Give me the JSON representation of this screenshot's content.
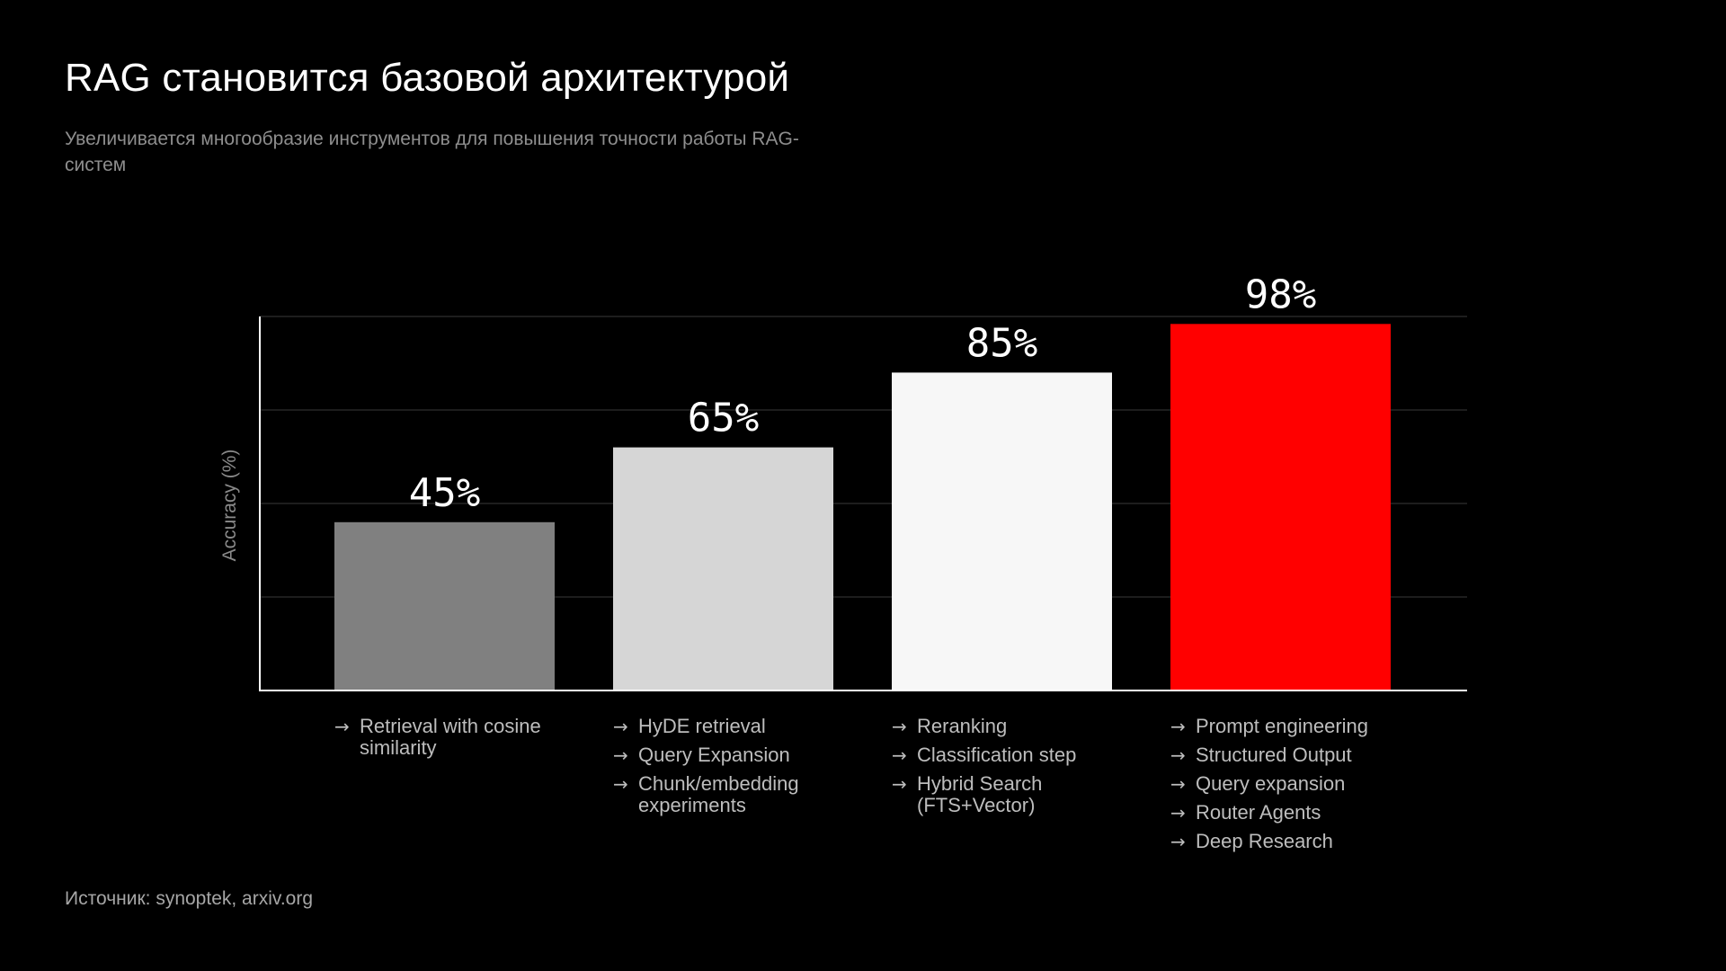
{
  "page": {
    "title": "RAG становится базовой архитектурой",
    "subtitle": "Увеличивается многообразие инструментов для повышения точности работы RAG-систем",
    "source": "Источник: synoptek, arxiv.org"
  },
  "chart_data": {
    "type": "bar",
    "title": "",
    "xlabel": "",
    "ylabel": "Accuracy (%)",
    "ylim": [
      0,
      100
    ],
    "grid": true,
    "categories": [
      "45%",
      "65%",
      "85%",
      "98%"
    ],
    "values": [
      45,
      65,
      85,
      98
    ],
    "value_labels": [
      "45%",
      "65%",
      "85%",
      "98%"
    ],
    "bar_colors": [
      "#808080",
      "#d6d6d6",
      "#f7f7f7",
      "#ff0000"
    ],
    "methods": [
      [
        "Retrieval with cosine similarity"
      ],
      [
        "HyDE retrieval",
        "Query Expansion",
        "Chunk/embedding experiments"
      ],
      [
        "Reranking",
        "Classification step",
        "Hybrid Search (FTS+Vector)"
      ],
      [
        "Prompt engineering",
        "Structured Output",
        "Query expansion",
        "Router Agents",
        "Deep Research"
      ]
    ],
    "arrow_icon": "arrow-right-icon"
  }
}
